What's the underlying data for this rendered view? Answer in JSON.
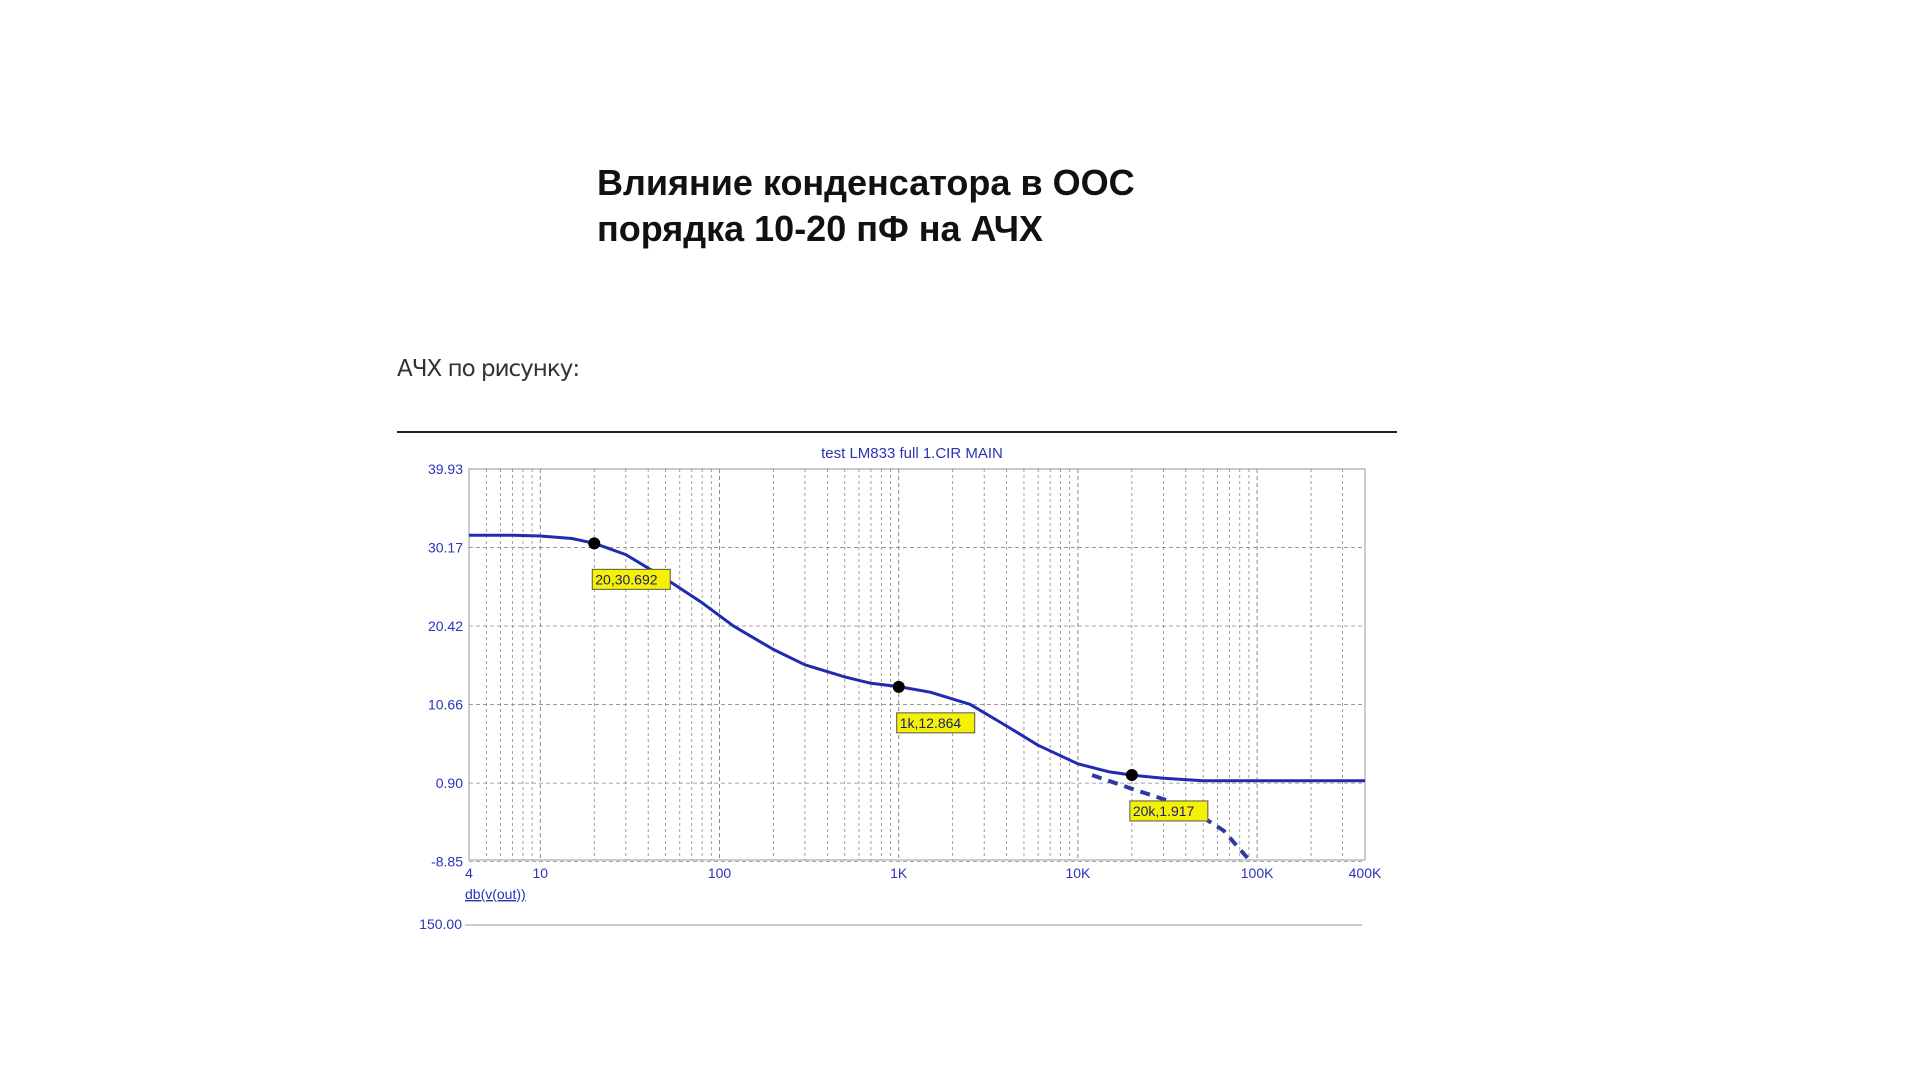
{
  "slide": {
    "title_line1": "Влияние конденсатора в ООС",
    "title_line2": "порядка 10-20 пФ на АЧХ",
    "caption": "АЧХ по рисунку:"
  },
  "colors": {
    "curve": "#1f2bb0",
    "axis_text": "#2b33b8",
    "grid": "#8a8a8a",
    "label_bg": "#f4f200",
    "marker": "#000000",
    "dashed_annotation": "#2f3aa0"
  },
  "chart_data": {
    "type": "line",
    "title": "test LM833 full 1.CIR MAIN",
    "xlabel": "",
    "ylabel": "db(v(out))",
    "x_scale": "log",
    "xlim": [
      4,
      400000
    ],
    "ylim": [
      -8.65,
      39.93
    ],
    "grid": true,
    "x_ticks": [
      4,
      10,
      100,
      1000,
      10000,
      100000,
      400000
    ],
    "x_tick_labels": [
      "4",
      "10",
      "100",
      "1K",
      "10K",
      "100K",
      "400K"
    ],
    "y_ticks": [
      39.93,
      30.17,
      20.42,
      10.66,
      0.9,
      -8.85
    ],
    "y_tick_labels": [
      "39.93",
      "30.17",
      "20.42",
      "10.66",
      "0.90",
      "-8.85"
    ],
    "series": [
      {
        "x": [
          4,
          7,
          10,
          15,
          20,
          30,
          50,
          80,
          120,
          200,
          300,
          500,
          700,
          1000,
          1500,
          2500,
          4000,
          6000,
          10000,
          15000,
          20000,
          30000,
          50000,
          100000,
          200000,
          400000
        ],
        "y": [
          31.7,
          31.7,
          31.6,
          31.3,
          30.7,
          29.3,
          26.3,
          23.3,
          20.4,
          17.5,
          15.6,
          14.1,
          13.3,
          12.9,
          12.2,
          10.7,
          8.0,
          5.6,
          3.3,
          2.3,
          1.9,
          1.5,
          1.2,
          1.2,
          1.2,
          1.2
        ]
      }
    ],
    "extra_lower_axis_label": "150.00",
    "markers": [
      {
        "x": 20,
        "y": 30.692,
        "label": "20,30.692"
      },
      {
        "x": 1000,
        "y": 12.864,
        "label": "1k,12.864"
      },
      {
        "x": 20000,
        "y": 1.917,
        "label": "20k,1.917"
      }
    ],
    "annotation": {
      "style": "dashed",
      "x": [
        12000,
        20000,
        40000,
        65000,
        90000
      ],
      "y": [
        1.9,
        0.2,
        -2.0,
        -5.0,
        -8.6
      ]
    }
  }
}
